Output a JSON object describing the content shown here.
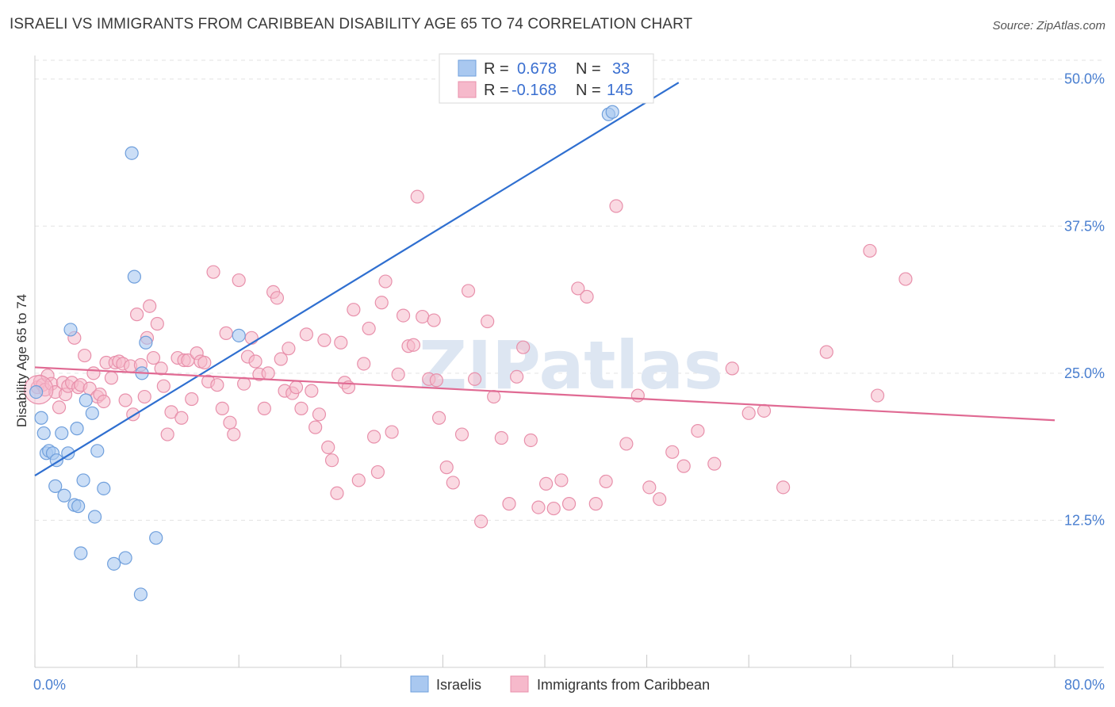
{
  "title": "ISRAELI VS IMMIGRANTS FROM CARIBBEAN DISABILITY AGE 65 TO 74 CORRELATION CHART",
  "source": "Source: ZipAtlas.com",
  "watermark": "ZIPatlas",
  "colors": {
    "blue_fill": "#a9c8f0",
    "blue_stroke": "#6f9fdc",
    "blue_line": "#2f6fd0",
    "pink_fill": "#f6b9cb",
    "pink_stroke": "#e890ab",
    "pink_line": "#e06a93",
    "tick_text": "#4a7fd0",
    "grid": "#e3e3e3"
  },
  "legend_top": {
    "rows": [
      {
        "r_label": "R =",
        "r_value": "0.678",
        "n_label": "N =",
        "n_value": "33"
      },
      {
        "r_label": "R =",
        "r_value": "-0.168",
        "n_label": "N =",
        "n_value": "145"
      }
    ]
  },
  "legend_bottom": {
    "items": [
      "Israelis",
      "Immigrants from Caribbean"
    ]
  },
  "chart_data": {
    "type": "scatter",
    "xlabel": "",
    "ylabel": "Disability Age 65 to 74",
    "xlim": [
      0,
      80
    ],
    "ylim": [
      0,
      52
    ],
    "x_tick_labels": [
      "0.0%",
      "80.0%"
    ],
    "y_ticks": [
      12.5,
      25.0,
      37.5,
      50.0
    ],
    "y_tick_labels": [
      "12.5%",
      "25.0%",
      "37.5%",
      "50.0%"
    ],
    "grid": true,
    "series": [
      {
        "name": "Israelis",
        "points": [
          [
            0.1,
            23.4
          ],
          [
            0.5,
            21.2
          ],
          [
            0.7,
            19.9
          ],
          [
            0.9,
            18.2
          ],
          [
            1.1,
            18.4
          ],
          [
            1.4,
            18.2
          ],
          [
            1.6,
            15.4
          ],
          [
            1.7,
            17.6
          ],
          [
            2.1,
            19.9
          ],
          [
            2.3,
            14.6
          ],
          [
            2.6,
            18.2
          ],
          [
            2.8,
            28.7
          ],
          [
            3.1,
            13.8
          ],
          [
            3.3,
            20.3
          ],
          [
            3.4,
            13.7
          ],
          [
            3.6,
            9.7
          ],
          [
            3.8,
            15.9
          ],
          [
            4.0,
            22.7
          ],
          [
            4.5,
            21.6
          ],
          [
            4.7,
            12.8
          ],
          [
            4.9,
            18.4
          ],
          [
            5.4,
            15.2
          ],
          [
            6.2,
            8.8
          ],
          [
            7.1,
            9.3
          ],
          [
            7.6,
            43.7
          ],
          [
            7.8,
            33.2
          ],
          [
            8.3,
            6.2
          ],
          [
            8.4,
            25.0
          ],
          [
            8.7,
            27.6
          ],
          [
            9.5,
            11.0
          ],
          [
            16.0,
            28.2
          ],
          [
            45.0,
            47.0
          ],
          [
            45.3,
            47.2
          ]
        ],
        "trend": {
          "x": [
            0,
            50.5
          ],
          "y": [
            16.3,
            49.7
          ]
        }
      },
      {
        "name": "Immigrants from Caribbean",
        "points": [
          [
            0.2,
            23.8
          ],
          [
            0.4,
            24.3
          ],
          [
            0.6,
            24.0
          ],
          [
            0.8,
            23.6
          ],
          [
            1.0,
            24.8
          ],
          [
            1.3,
            24.1
          ],
          [
            1.6,
            23.4
          ],
          [
            1.9,
            22.1
          ],
          [
            2.2,
            24.2
          ],
          [
            2.4,
            23.2
          ],
          [
            2.6,
            23.9
          ],
          [
            2.9,
            24.2
          ],
          [
            3.1,
            28.0
          ],
          [
            3.4,
            23.8
          ],
          [
            3.6,
            24.0
          ],
          [
            3.9,
            26.5
          ],
          [
            4.3,
            23.7
          ],
          [
            4.6,
            25.0
          ],
          [
            4.9,
            23.0
          ],
          [
            5.1,
            23.2
          ],
          [
            5.4,
            22.6
          ],
          [
            5.6,
            25.9
          ],
          [
            6.0,
            24.6
          ],
          [
            6.3,
            25.9
          ],
          [
            6.6,
            26.0
          ],
          [
            6.9,
            25.8
          ],
          [
            7.1,
            22.7
          ],
          [
            7.5,
            25.6
          ],
          [
            7.7,
            21.5
          ],
          [
            8.0,
            30.0
          ],
          [
            8.3,
            25.7
          ],
          [
            8.6,
            23.0
          ],
          [
            8.8,
            28.0
          ],
          [
            9.0,
            30.7
          ],
          [
            9.3,
            26.3
          ],
          [
            9.6,
            29.2
          ],
          [
            9.9,
            25.4
          ],
          [
            10.1,
            23.9
          ],
          [
            10.4,
            19.8
          ],
          [
            10.7,
            21.7
          ],
          [
            11.2,
            26.3
          ],
          [
            11.5,
            21.2
          ],
          [
            11.7,
            26.1
          ],
          [
            12.0,
            26.1
          ],
          [
            12.3,
            22.8
          ],
          [
            12.7,
            26.7
          ],
          [
            13.0,
            26.0
          ],
          [
            13.3,
            25.9
          ],
          [
            13.6,
            24.3
          ],
          [
            14.0,
            33.6
          ],
          [
            14.3,
            24.0
          ],
          [
            14.7,
            22.0
          ],
          [
            15.0,
            28.4
          ],
          [
            15.3,
            20.8
          ],
          [
            15.6,
            19.8
          ],
          [
            16.0,
            32.9
          ],
          [
            16.4,
            24.1
          ],
          [
            16.7,
            26.4
          ],
          [
            17.0,
            28.0
          ],
          [
            17.3,
            26.0
          ],
          [
            17.6,
            24.9
          ],
          [
            18.0,
            22.0
          ],
          [
            18.3,
            25.0
          ],
          [
            18.7,
            31.9
          ],
          [
            19.0,
            31.4
          ],
          [
            19.3,
            26.2
          ],
          [
            19.6,
            23.5
          ],
          [
            19.9,
            27.1
          ],
          [
            20.2,
            23.3
          ],
          [
            20.5,
            23.8
          ],
          [
            20.9,
            22.0
          ],
          [
            21.3,
            28.3
          ],
          [
            21.7,
            23.5
          ],
          [
            22.0,
            20.4
          ],
          [
            22.3,
            21.5
          ],
          [
            22.7,
            27.8
          ],
          [
            23.0,
            18.7
          ],
          [
            23.3,
            17.6
          ],
          [
            23.7,
            14.8
          ],
          [
            24.0,
            27.6
          ],
          [
            24.3,
            24.2
          ],
          [
            24.6,
            23.8
          ],
          [
            25.0,
            30.4
          ],
          [
            25.4,
            15.9
          ],
          [
            25.8,
            25.8
          ],
          [
            26.2,
            28.8
          ],
          [
            26.6,
            19.6
          ],
          [
            26.9,
            16.6
          ],
          [
            27.2,
            31.0
          ],
          [
            27.5,
            32.8
          ],
          [
            28.0,
            20.0
          ],
          [
            28.5,
            24.9
          ],
          [
            28.9,
            29.9
          ],
          [
            29.3,
            27.3
          ],
          [
            29.7,
            27.4
          ],
          [
            30.0,
            40.0
          ],
          [
            30.4,
            29.8
          ],
          [
            30.9,
            24.5
          ],
          [
            31.3,
            29.5
          ],
          [
            31.7,
            21.2
          ],
          [
            32.3,
            17.0
          ],
          [
            32.8,
            15.7
          ],
          [
            33.5,
            19.8
          ],
          [
            34.0,
            32.0
          ],
          [
            34.5,
            24.5
          ],
          [
            35.0,
            12.4
          ],
          [
            35.5,
            29.4
          ],
          [
            36.0,
            23.0
          ],
          [
            36.6,
            19.5
          ],
          [
            37.2,
            13.9
          ],
          [
            37.8,
            24.7
          ],
          [
            38.3,
            27.2
          ],
          [
            38.9,
            19.3
          ],
          [
            39.5,
            13.6
          ],
          [
            40.1,
            15.6
          ],
          [
            40.7,
            13.5
          ],
          [
            41.3,
            15.9
          ],
          [
            41.9,
            13.9
          ],
          [
            42.6,
            32.2
          ],
          [
            43.3,
            31.5
          ],
          [
            44.0,
            13.9
          ],
          [
            44.8,
            15.8
          ],
          [
            45.6,
            39.2
          ],
          [
            46.4,
            19.0
          ],
          [
            47.3,
            23.1
          ],
          [
            48.2,
            15.3
          ],
          [
            49.0,
            14.3
          ],
          [
            50.0,
            18.3
          ],
          [
            50.9,
            17.1
          ],
          [
            52.0,
            20.1
          ],
          [
            53.3,
            17.3
          ],
          [
            54.7,
            25.4
          ],
          [
            56.0,
            21.6
          ],
          [
            57.2,
            21.8
          ],
          [
            58.7,
            15.3
          ],
          [
            62.1,
            26.8
          ],
          [
            65.5,
            35.4
          ],
          [
            66.1,
            23.1
          ],
          [
            68.3,
            33.0
          ],
          [
            31.5,
            24.4
          ]
        ],
        "trend": {
          "x": [
            0,
            80
          ],
          "y": [
            25.5,
            21.0
          ]
        }
      }
    ]
  }
}
